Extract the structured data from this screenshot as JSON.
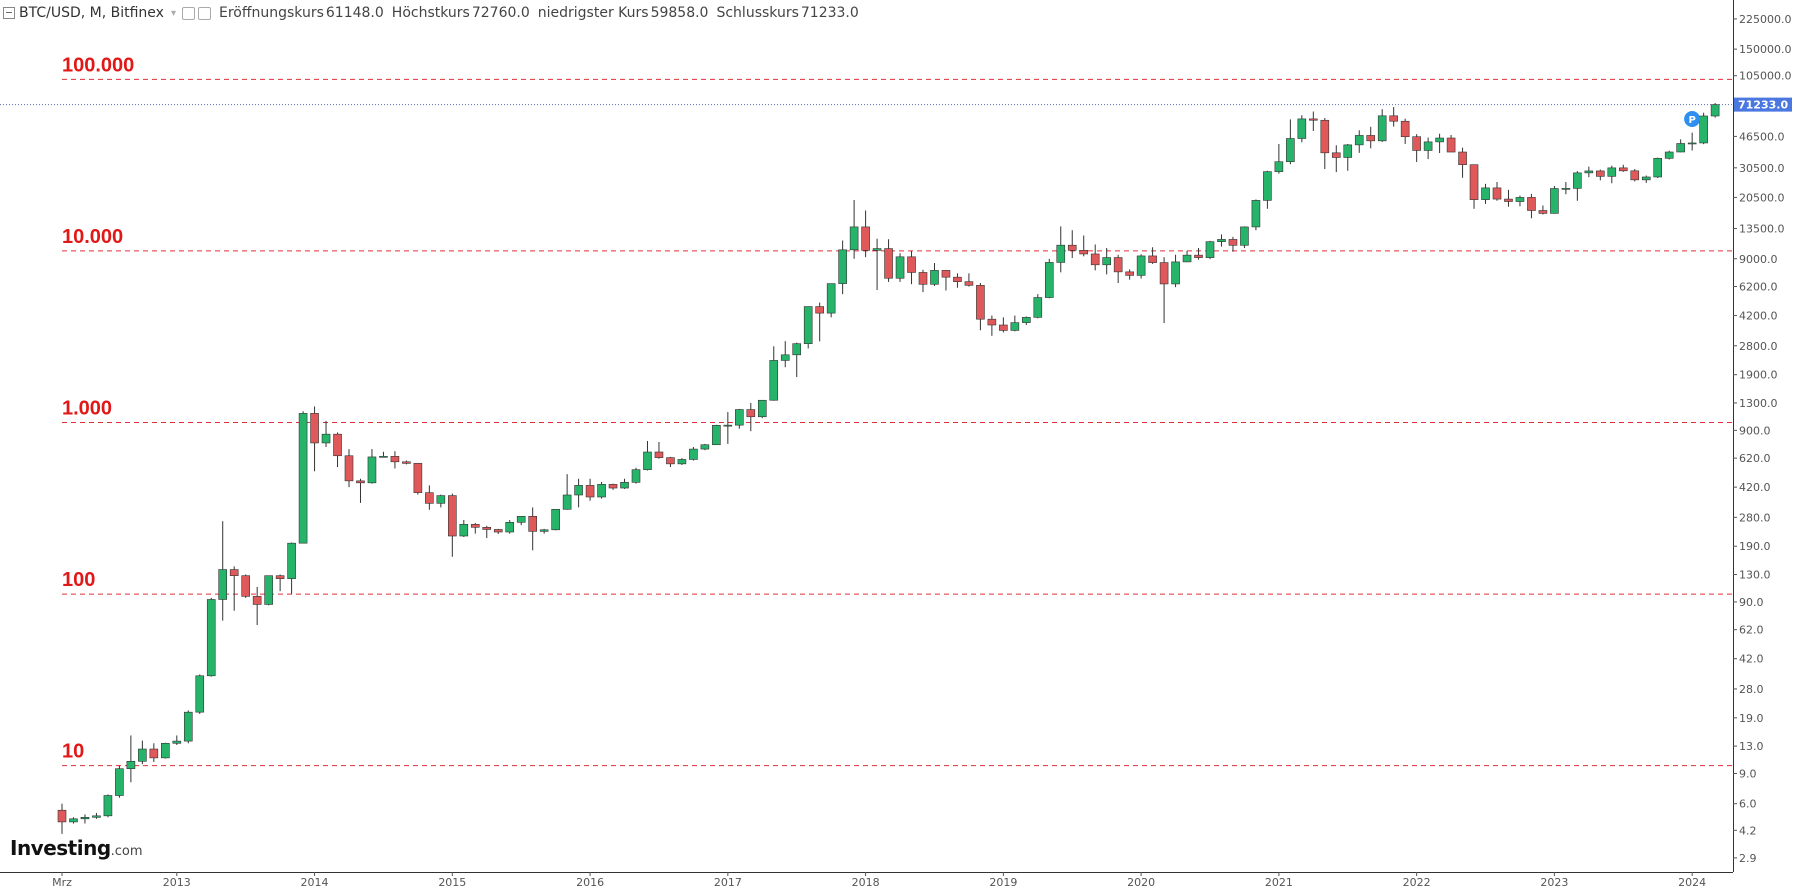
{
  "header": {
    "symbol": "BTC/USD, M, Bitfinex",
    "open_label": "Eröffnungskurs",
    "open_value": "61148.0",
    "high_label": "Höchstkurs",
    "high_value": "72760.0",
    "low_label": "niedrigster Kurs",
    "low_value": "59858.0",
    "close_label": "Schlusskurs",
    "close_value": "71233.0"
  },
  "logo": {
    "brand": "Investing",
    "domain": ".com"
  },
  "colors": {
    "up": "#26b36a",
    "down": "#e0595a",
    "ref_line": "#e0303a",
    "price_tag": "#4a78e0",
    "axis_text": "#555555",
    "badge": "#2e8ff0"
  },
  "chart_data": {
    "type": "candlestick",
    "scale": "log",
    "ylim": [
      2.4,
      290000
    ],
    "current_price": 71233.0,
    "current_price_label": "71233.0",
    "marker_label": "P",
    "x_labels": [
      {
        "label": "Mrz",
        "month": 0
      },
      {
        "label": "2013",
        "month": 10
      },
      {
        "label": "2014",
        "month": 22
      },
      {
        "label": "2015",
        "month": 34
      },
      {
        "label": "2016",
        "month": 46
      },
      {
        "label": "2017",
        "month": 58
      },
      {
        "label": "2018",
        "month": 70
      },
      {
        "label": "2019",
        "month": 82
      },
      {
        "label": "2020",
        "month": 94
      },
      {
        "label": "2021",
        "month": 106
      },
      {
        "label": "2022",
        "month": 118
      },
      {
        "label": "2023",
        "month": 130
      },
      {
        "label": "2024",
        "month": 142
      }
    ],
    "y_ticks": [
      {
        "label": "2.9",
        "value": 2.9
      },
      {
        "label": "4.2",
        "value": 4.2
      },
      {
        "label": "6.0",
        "value": 6.0
      },
      {
        "label": "9.0",
        "value": 9.0
      },
      {
        "label": "13.0",
        "value": 13.0
      },
      {
        "label": "19.0",
        "value": 19.0
      },
      {
        "label": "28.0",
        "value": 28.0
      },
      {
        "label": "42.0",
        "value": 42.0
      },
      {
        "label": "62.0",
        "value": 62.0
      },
      {
        "label": "90.0",
        "value": 90.0
      },
      {
        "label": "130.0",
        "value": 130.0
      },
      {
        "label": "190.0",
        "value": 190.0
      },
      {
        "label": "280.0",
        "value": 280.0
      },
      {
        "label": "420.0",
        "value": 420.0
      },
      {
        "label": "620.0",
        "value": 620.0
      },
      {
        "label": "900.0",
        "value": 900.0
      },
      {
        "label": "1300.0",
        "value": 1300.0
      },
      {
        "label": "1900.0",
        "value": 1900.0
      },
      {
        "label": "2800.0",
        "value": 2800.0
      },
      {
        "label": "4200.0",
        "value": 4200.0
      },
      {
        "label": "6200.0",
        "value": 6200.0
      },
      {
        "label": "9000.0",
        "value": 9000.0
      },
      {
        "label": "13500.0",
        "value": 13500.0
      },
      {
        "label": "20500.0",
        "value": 20500.0
      },
      {
        "label": "30500.0",
        "value": 30500.0
      },
      {
        "label": "46500.0",
        "value": 46500.0
      },
      {
        "label": "105000.0",
        "value": 105000.0
      },
      {
        "label": "150000.0",
        "value": 150000.0
      },
      {
        "label": "225000.0",
        "value": 225000.0
      }
    ],
    "reference_lines": [
      {
        "label": "10",
        "value": 10
      },
      {
        "label": "100",
        "value": 100
      },
      {
        "label": "1.000",
        "value": 1000
      },
      {
        "label": "10.000",
        "value": 10000
      },
      {
        "label": "100.000",
        "value": 100000
      }
    ],
    "candles": [
      [
        5.5,
        6.0,
        4.0,
        4.7
      ],
      [
        4.7,
        5.0,
        4.6,
        4.9
      ],
      [
        4.9,
        5.2,
        4.6,
        5.0
      ],
      [
        5.0,
        5.3,
        4.9,
        5.1
      ],
      [
        5.1,
        6.8,
        5.0,
        6.7
      ],
      [
        6.7,
        10.0,
        6.5,
        9.6
      ],
      [
        9.6,
        15.0,
        8.0,
        10.6
      ],
      [
        10.6,
        14.0,
        10.2,
        12.5
      ],
      [
        12.5,
        13.5,
        10.5,
        11.1
      ],
      [
        11.1,
        13.6,
        11.0,
        13.5
      ],
      [
        13.5,
        15.0,
        13.2,
        13.9
      ],
      [
        13.9,
        21.0,
        13.5,
        20.5
      ],
      [
        20.5,
        34.0,
        20.0,
        33.4
      ],
      [
        33.4,
        95.0,
        33.0,
        93.0
      ],
      [
        93.0,
        266.0,
        70.0,
        139.0
      ],
      [
        139.0,
        145.0,
        80.0,
        128.0
      ],
      [
        128.0,
        130.0,
        95.0,
        97.0
      ],
      [
        97.0,
        110.0,
        66.0,
        87.0
      ],
      [
        87.0,
        127.0,
        86.0,
        128.0
      ],
      [
        128.0,
        130.0,
        104.0,
        123.0
      ],
      [
        123.0,
        200.0,
        100.0,
        198.0
      ],
      [
        198.0,
        1163.0,
        198.0,
        1130.0
      ],
      [
        1130.0,
        1240.0,
        520.0,
        760.0
      ],
      [
        760.0,
        1022.0,
        720.0,
        855.0
      ],
      [
        855.0,
        875.0,
        550.0,
        640.0
      ],
      [
        640.0,
        700.0,
        420.0,
        457.0
      ],
      [
        457.0,
        470.0,
        340.0,
        445.0
      ],
      [
        445.0,
        700.0,
        440.0,
        630.0
      ],
      [
        630.0,
        675.0,
        630.0,
        635.0
      ],
      [
        635.0,
        680.0,
        540.0,
        590.0
      ],
      [
        590.0,
        600.0,
        570.0,
        578.0
      ],
      [
        578.0,
        580.0,
        380.0,
        390.0
      ],
      [
        390.0,
        430.0,
        310.0,
        338.0
      ],
      [
        338.0,
        380.0,
        320.0,
        375.0
      ],
      [
        375.0,
        385.0,
        165.0,
        218.0
      ],
      [
        218.0,
        270.0,
        215.0,
        255.0
      ],
      [
        255.0,
        260.0,
        225.0,
        245.0
      ],
      [
        245.0,
        250.0,
        212.0,
        238.0
      ],
      [
        238.0,
        240.0,
        224.0,
        230.0
      ],
      [
        230.0,
        270.0,
        225.0,
        262.0
      ],
      [
        262.0,
        280.0,
        252.0,
        284.0
      ],
      [
        284.0,
        320.0,
        180.0,
        232.0
      ],
      [
        232.0,
        240.0,
        225.0,
        237.0
      ],
      [
        237.0,
        250.0,
        235.0,
        312.0
      ],
      [
        312.0,
        500.0,
        310.0,
        378.0
      ],
      [
        378.0,
        470.0,
        320.0,
        430.0
      ],
      [
        430.0,
        470.0,
        350.0,
        368.0
      ],
      [
        368.0,
        450.0,
        360.0,
        436.0
      ],
      [
        436.0,
        440.0,
        405.0,
        415.0
      ],
      [
        415.0,
        470.0,
        410.0,
        448.0
      ],
      [
        448.0,
        545.0,
        440.0,
        531.0
      ],
      [
        531.0,
        780.0,
        525.0,
        673.0
      ],
      [
        673.0,
        770.0,
        615.0,
        624.0
      ],
      [
        624.0,
        630.0,
        550.0,
        574.0
      ],
      [
        574.0,
        620.0,
        565.0,
        609.0
      ],
      [
        609.0,
        720.0,
        600.0,
        700.0
      ],
      [
        700.0,
        750.0,
        690.0,
        742.0
      ],
      [
        742.0,
        970.0,
        740.0,
        963.0
      ],
      [
        963.0,
        1150.0,
        750.0,
        965.0
      ],
      [
        965.0,
        1200.0,
        920.0,
        1190.0
      ],
      [
        1190.0,
        1300.0,
        890.0,
        1080.0
      ],
      [
        1080.0,
        1350.0,
        1060.0,
        1348.0
      ],
      [
        1348.0,
        2780.0,
        1340.0,
        2300.0
      ],
      [
        2300.0,
        2980.0,
        2100.0,
        2480.0
      ],
      [
        2480.0,
        2920.0,
        1840.0,
        2880.0
      ],
      [
        2880.0,
        4750.0,
        2700.0,
        4740.0
      ],
      [
        4740.0,
        5000.0,
        2970.0,
        4340.0
      ],
      [
        4340.0,
        6450.0,
        4100.0,
        6450.0
      ],
      [
        6450.0,
        11500.0,
        5600.0,
        10150.0
      ],
      [
        10150.0,
        19800.0,
        9000.0,
        13800.0
      ],
      [
        13800.0,
        17200.0,
        9200.0,
        10080.0
      ],
      [
        10080.0,
        11780.0,
        5920.0,
        10320.0
      ],
      [
        10320.0,
        11700.0,
        6600.0,
        6930.0
      ],
      [
        6930.0,
        9700.0,
        6600.0,
        9240.0
      ],
      [
        9240.0,
        10000.0,
        6400.0,
        7490.0
      ],
      [
        7490.0,
        7770.0,
        5750.0,
        6390.0
      ],
      [
        6390.0,
        8500.0,
        6250.0,
        7700.0
      ],
      [
        7700.0,
        7750.0,
        5880.0,
        7030.0
      ],
      [
        7030.0,
        7400.0,
        6100.0,
        6620.0
      ],
      [
        6620.0,
        7400.0,
        6200.0,
        6300.0
      ],
      [
        6300.0,
        6500.0,
        3450.0,
        4000.0
      ],
      [
        4000.0,
        4200.0,
        3200.0,
        3700.0
      ],
      [
        3700.0,
        4100.0,
        3350.0,
        3440.0
      ],
      [
        3440.0,
        4200.0,
        3400.0,
        3820.0
      ],
      [
        3820.0,
        4150.0,
        3700.0,
        4100.0
      ],
      [
        4100.0,
        5600.0,
        4050.0,
        5350.0
      ],
      [
        5350.0,
        9000.0,
        5300.0,
        8570.0
      ],
      [
        8570.0,
        13900.0,
        7500.0,
        10800.0
      ],
      [
        10800.0,
        13200.0,
        9100.0,
        10080.0
      ],
      [
        10080.0,
        12300.0,
        9300.0,
        9600.0
      ],
      [
        9600.0,
        10900.0,
        7700.0,
        8300.0
      ],
      [
        8300.0,
        10400.0,
        7300.0,
        9150.0
      ],
      [
        9150.0,
        9500.0,
        6500.0,
        7550.0
      ],
      [
        7550.0,
        7800.0,
        6800.0,
        7200.0
      ],
      [
        7200.0,
        9550.0,
        6900.0,
        9350.0
      ],
      [
        9350.0,
        10500.0,
        8400.0,
        8550.0
      ],
      [
        8550.0,
        9200.0,
        3800.0,
        6420.0
      ],
      [
        6420.0,
        9500.0,
        6150.0,
        8630.0
      ],
      [
        8630.0,
        10000.0,
        8600.0,
        9450.0
      ],
      [
        9450.0,
        10400.0,
        8900.0,
        9140.0
      ],
      [
        9140.0,
        11450.0,
        8950.0,
        11320.0
      ],
      [
        11320.0,
        12480.0,
        10600.0,
        11670.0
      ],
      [
        11670.0,
        12080.0,
        9900.0,
        10780.0
      ],
      [
        10780.0,
        13900.0,
        10400.0,
        13800.0
      ],
      [
        13800.0,
        19950.0,
        13200.0,
        19700.0
      ],
      [
        19700.0,
        29300.0,
        17600.0,
        28980.0
      ],
      [
        28980.0,
        42000.0,
        28200.0,
        33100.0
      ],
      [
        33100.0,
        58400.0,
        32000.0,
        45200.0
      ],
      [
        45200.0,
        61800.0,
        43000.0,
        58800.0
      ],
      [
        58800.0,
        64900.0,
        50000.0,
        57750.0
      ],
      [
        57750.0,
        59500.0,
        30000.0,
        37300.0
      ],
      [
        37300.0,
        41300.0,
        28800.0,
        35040.0
      ],
      [
        35040.0,
        42000.0,
        29300.0,
        41500.0
      ],
      [
        41500.0,
        50500.0,
        37300.0,
        47100.0
      ],
      [
        47100.0,
        52900.0,
        39600.0,
        43800.0
      ],
      [
        43800.0,
        67000.0,
        43200.0,
        61300.0
      ],
      [
        61300.0,
        69000.0,
        53000.0,
        57000.0
      ],
      [
        57000.0,
        59000.0,
        42000.0,
        46300.0
      ],
      [
        46300.0,
        47900.0,
        33000.0,
        38500.0
      ],
      [
        38500.0,
        45800.0,
        34300.0,
        43200.0
      ],
      [
        43200.0,
        48200.0,
        37200.0,
        45500.0
      ],
      [
        45500.0,
        47400.0,
        37700.0,
        37700.0
      ],
      [
        37700.0,
        40000.0,
        26700.0,
        31800.0
      ],
      [
        31800.0,
        31900.0,
        17600.0,
        19900.0
      ],
      [
        19900.0,
        24600.0,
        18800.0,
        23300.0
      ],
      [
        23300.0,
        25200.0,
        19600.0,
        20050.0
      ],
      [
        20050.0,
        22700.0,
        18100.0,
        19400.0
      ],
      [
        19400.0,
        21000.0,
        18200.0,
        20500.0
      ],
      [
        20500.0,
        21500.0,
        15500.0,
        17200.0
      ],
      [
        17200.0,
        18400.0,
        16300.0,
        16550.0
      ],
      [
        16550.0,
        23900.0,
        16500.0,
        23100.0
      ],
      [
        23100.0,
        25200.0,
        21400.0,
        23150.0
      ],
      [
        23150.0,
        29200.0,
        19600.0,
        28500.0
      ],
      [
        28500.0,
        31000.0,
        26900.0,
        29250.0
      ],
      [
        29250.0,
        29800.0,
        25800.0,
        27200.0
      ],
      [
        27200.0,
        31400.0,
        24800.0,
        30480.0
      ],
      [
        30480.0,
        31800.0,
        28900.0,
        29300.0
      ],
      [
        29300.0,
        30000.0,
        25400.0,
        25950.0
      ],
      [
        25950.0,
        27500.0,
        24900.0,
        26970.0
      ],
      [
        26970.0,
        35000.0,
        26600.0,
        34650.0
      ],
      [
        34650.0,
        38400.0,
        34100.0,
        37720.0
      ],
      [
        37720.0,
        44700.0,
        37600.0,
        42280.0
      ],
      [
        42280.0,
        48900.0,
        38500.0,
        42580.0
      ],
      [
        42580.0,
        63900.0,
        41900.0,
        61148.0
      ],
      [
        61148.0,
        72760.0,
        59858.0,
        71233.0
      ]
    ]
  }
}
